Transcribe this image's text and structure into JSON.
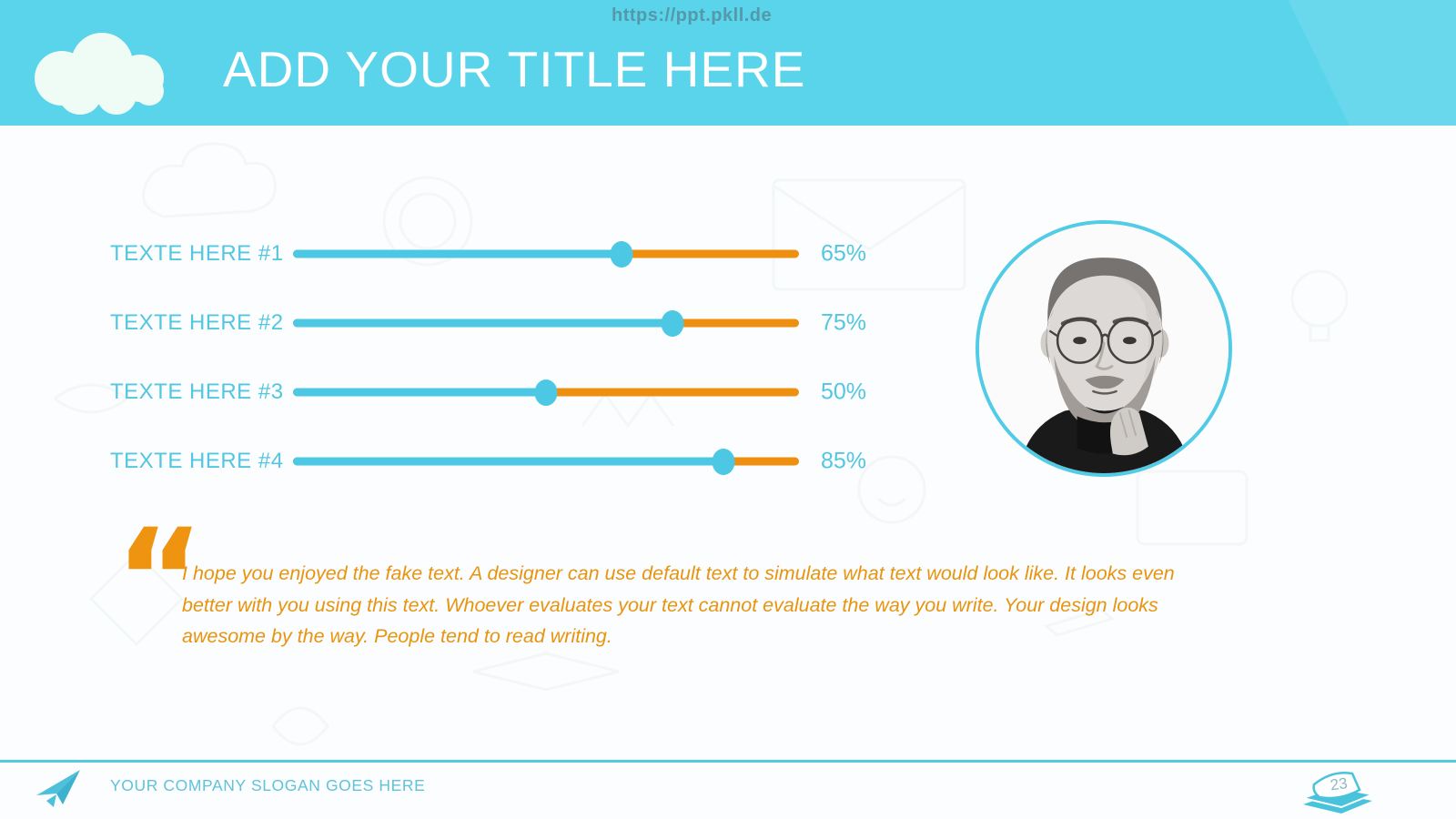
{
  "watermark": "https://ppt.pkll.de",
  "header": {
    "title": "ADD YOUR TITLE HERE"
  },
  "sliders": {
    "items": [
      {
        "label": "TEXTE HERE #1",
        "percent": 65,
        "display": "65%"
      },
      {
        "label": "TEXTE HERE #2",
        "percent": 75,
        "display": "75%"
      },
      {
        "label": "TEXTE HERE #3",
        "percent": 50,
        "display": "50%"
      },
      {
        "label": "TEXTE HERE #4",
        "percent": 85,
        "display": "85%"
      }
    ]
  },
  "portrait": {
    "name": "steve-jobs-grayscale-portrait"
  },
  "quote": {
    "mark": "“",
    "text": "I hope you enjoyed the fake text. A designer can use default text to simulate what text would look like. It looks even better with you using this text. Whoever evaluates your text cannot evaluate the way you write. Your design looks awesome by the way. People tend to read writing."
  },
  "footer": {
    "slogan": "YOUR COMPANY SLOGAN GOES HERE",
    "page_number": "23"
  },
  "icons": {
    "header": "cloud-icon",
    "footer_left": "paper-plane-icon",
    "footer_right": "stacked-pages-icon"
  },
  "colors": {
    "header_bg": "#5ad4ea",
    "cyan": "#4cc8e5",
    "cyan_text": "#53c6e0",
    "orange": "#ee8f10",
    "quote_orange": "#e8940f",
    "watermark_gray": "#4e6872",
    "page_number_gray": "#8fb9c4"
  }
}
